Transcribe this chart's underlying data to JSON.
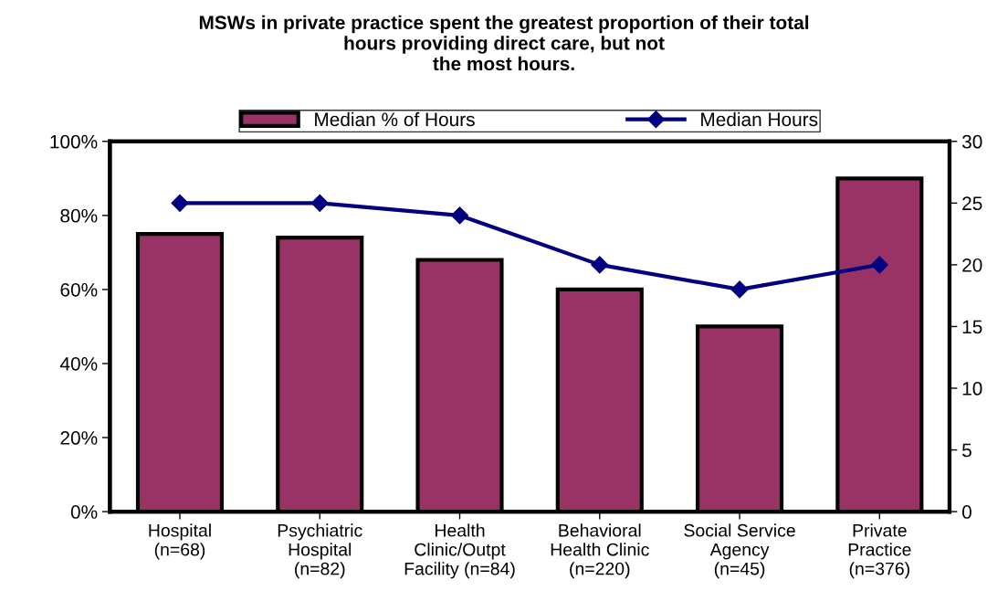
{
  "chart_data": {
    "type": "bar",
    "title": "MSWs in private practice spent the greatest proportion of their total\nhours providing direct care, but not\nthe most hours.",
    "categories": [
      "Hospital\n(n=68)",
      "Psychiatric\nHospital\n(n=82)",
      "Health\nClinic/Outpt\nFacility (n=84)",
      "Behavioral\nHealth Clinic\n(n=220)",
      "Social Service\nAgency\n(n=45)",
      "Private\nPractice\n(n=376)"
    ],
    "series": [
      {
        "name": "Median % of Hours",
        "color": "#993366",
        "values": [
          75,
          74,
          68,
          60,
          50,
          90
        ]
      },
      {
        "name": "Median Hours",
        "type": "line",
        "axis": "y2",
        "color": "#000080",
        "marker": "diamond",
        "line_style": "solid",
        "values": [
          25,
          25,
          24,
          20,
          18,
          20
        ]
      }
    ],
    "ylim": [
      0,
      100
    ],
    "yticks": [
      {
        "value": 0,
        "label": "0%"
      },
      {
        "value": 20,
        "label": "20%"
      },
      {
        "value": 40,
        "label": "40%"
      },
      {
        "value": 60,
        "label": "60%"
      },
      {
        "value": 80,
        "label": "80%"
      },
      {
        "value": 100,
        "label": "100%"
      }
    ],
    "y2lim": [
      0,
      30
    ],
    "y2ticks": [
      0,
      5,
      10,
      15,
      20,
      25,
      30
    ],
    "grid": false,
    "legend": "top"
  }
}
